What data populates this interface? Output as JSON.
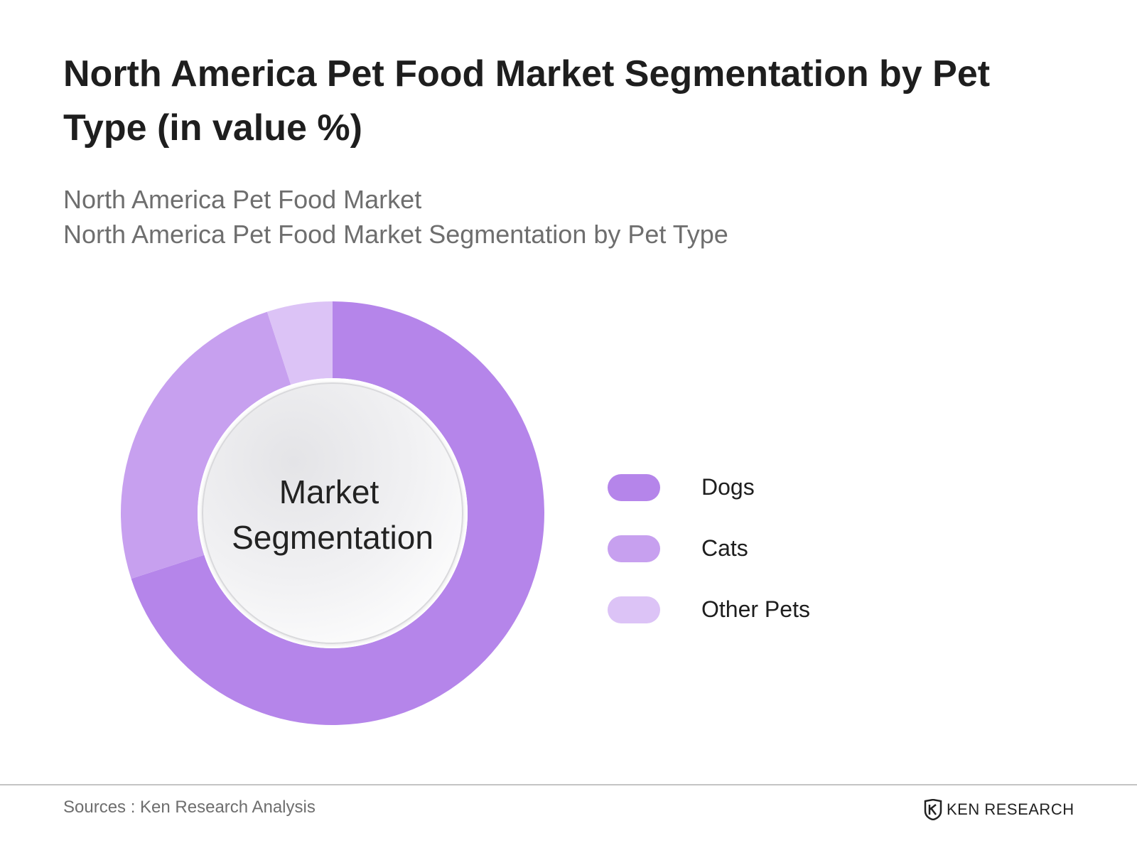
{
  "title": "North America Pet Food Market Segmentation by Pet Type (in value %)",
  "subtitle_lines": [
    "North America Pet Food Market",
    "North America Pet Food Market Segmentation by Pet Type"
  ],
  "chart_data": {
    "type": "pie",
    "variant": "donut",
    "center_label": [
      "Market",
      "Segmentation"
    ],
    "categories": [
      "Dogs",
      "Cats",
      "Other Pets"
    ],
    "values": [
      70,
      25,
      5
    ],
    "colors": [
      "#b585ea",
      "#c7a0ef",
      "#dcc3f6"
    ],
    "legend": {
      "position": "right",
      "entries": [
        "Dogs",
        "Cats",
        "Other Pets"
      ]
    }
  },
  "footer": {
    "source": "Sources : Ken Research Analysis",
    "brand": "KEN RESEARCH",
    "brand_icon": "ken-research-logo-icon"
  }
}
